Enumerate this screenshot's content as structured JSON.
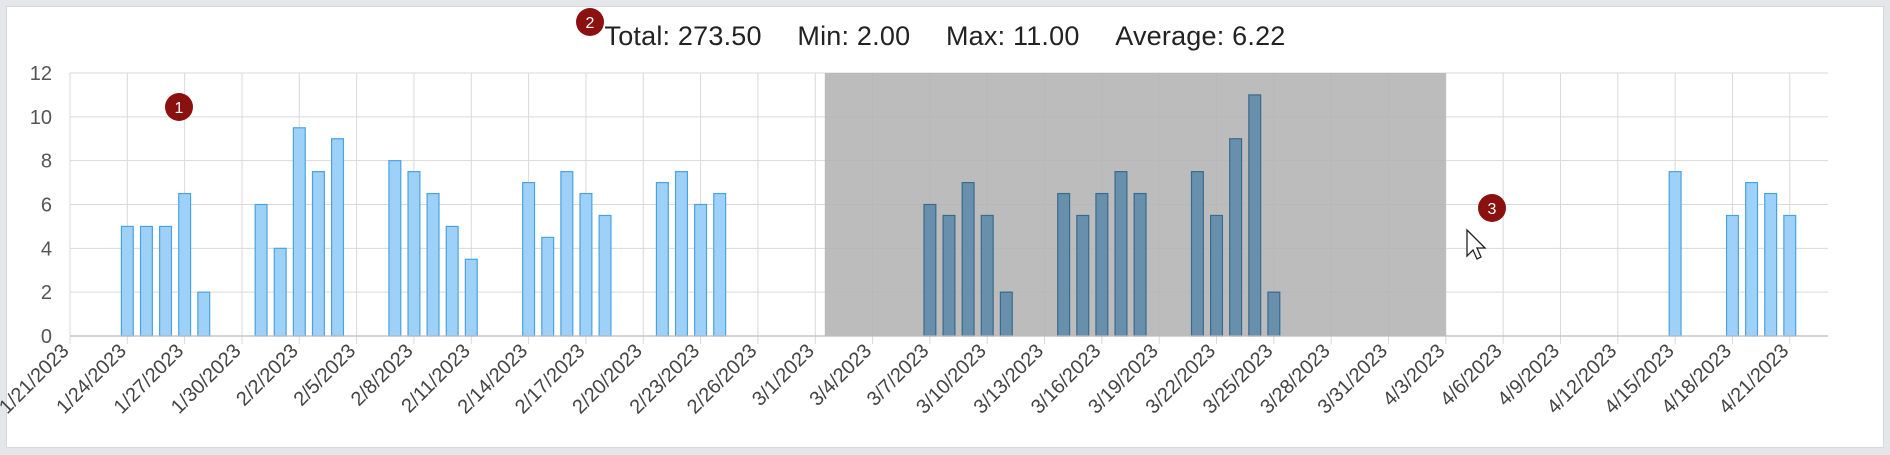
{
  "summary": {
    "total": "Total: 273.50",
    "min": "Min: 2.00",
    "max": "Max: 11.00",
    "average": "Average: 6.22"
  },
  "markers": [
    "1",
    "2",
    "3"
  ],
  "colors": {
    "bar_fill": "#9ed1f7",
    "bar_stroke": "#4aa3e0",
    "bar_fill_selected": "#6890ad",
    "bar_stroke_selected": "#3a6a8c",
    "selection": "#b3b3b3",
    "grid": "#d9d9d9",
    "marker": "#8b1010"
  },
  "chart_data": {
    "type": "bar",
    "x_axis": {
      "tick_labels": [
        "1/21/2023",
        "1/24/2023",
        "1/27/2023",
        "1/30/2023",
        "2/2/2023",
        "2/5/2023",
        "2/8/2023",
        "2/11/2023",
        "2/14/2023",
        "2/17/2023",
        "2/20/2023",
        "2/23/2023",
        "2/26/2023",
        "3/1/2023",
        "3/4/2023",
        "3/7/2023",
        "3/10/2023",
        "3/13/2023",
        "3/16/2023",
        "3/19/2023",
        "3/22/2023",
        "3/25/2023",
        "3/28/2023",
        "3/31/2023",
        "4/3/2023",
        "4/6/2023",
        "4/9/2023",
        "4/12/2023",
        "4/15/2023",
        "4/18/2023",
        "4/21/2023"
      ],
      "range": [
        "1/21/2023",
        "4/23/2023"
      ]
    },
    "y_axis": {
      "ticks": [
        "0",
        "2",
        "4",
        "6",
        "8",
        "10",
        "12"
      ],
      "range": [
        0,
        12
      ]
    },
    "grid": true,
    "selection_range": [
      "3/2/2023",
      "4/3/2023"
    ],
    "points": [
      {
        "x": "1/24/2023",
        "y": 5
      },
      {
        "x": "1/25/2023",
        "y": 5
      },
      {
        "x": "1/26/2023",
        "y": 5
      },
      {
        "x": "1/27/2023",
        "y": 6.5
      },
      {
        "x": "1/28/2023",
        "y": 2
      },
      {
        "x": "1/31/2023",
        "y": 6
      },
      {
        "x": "2/1/2023",
        "y": 4
      },
      {
        "x": "2/2/2023",
        "y": 9.5
      },
      {
        "x": "2/3/2023",
        "y": 7.5
      },
      {
        "x": "2/4/2023",
        "y": 9
      },
      {
        "x": "2/7/2023",
        "y": 8
      },
      {
        "x": "2/8/2023",
        "y": 7.5
      },
      {
        "x": "2/9/2023",
        "y": 6.5
      },
      {
        "x": "2/10/2023",
        "y": 5
      },
      {
        "x": "2/11/2023",
        "y": 3.5
      },
      {
        "x": "2/14/2023",
        "y": 7
      },
      {
        "x": "2/15/2023",
        "y": 4.5
      },
      {
        "x": "2/16/2023",
        "y": 7.5
      },
      {
        "x": "2/17/2023",
        "y": 6.5
      },
      {
        "x": "2/18/2023",
        "y": 5.5
      },
      {
        "x": "2/21/2023",
        "y": 7
      },
      {
        "x": "2/22/2023",
        "y": 7.5
      },
      {
        "x": "2/23/2023",
        "y": 6
      },
      {
        "x": "2/24/2023",
        "y": 6.5
      },
      {
        "x": "3/7/2023",
        "y": 6
      },
      {
        "x": "3/8/2023",
        "y": 5.5
      },
      {
        "x": "3/9/2023",
        "y": 7
      },
      {
        "x": "3/10/2023",
        "y": 5.5
      },
      {
        "x": "3/11/2023",
        "y": 2
      },
      {
        "x": "3/14/2023",
        "y": 6.5
      },
      {
        "x": "3/15/2023",
        "y": 5.5
      },
      {
        "x": "3/16/2023",
        "y": 6.5
      },
      {
        "x": "3/17/2023",
        "y": 7.5
      },
      {
        "x": "3/18/2023",
        "y": 6.5
      },
      {
        "x": "3/21/2023",
        "y": 7.5
      },
      {
        "x": "3/22/2023",
        "y": 5.5
      },
      {
        "x": "3/23/2023",
        "y": 9
      },
      {
        "x": "3/24/2023",
        "y": 11
      },
      {
        "x": "3/25/2023",
        "y": 2
      },
      {
        "x": "4/15/2023",
        "y": 7.5
      },
      {
        "x": "4/18/2023",
        "y": 5.5
      },
      {
        "x": "4/19/2023",
        "y": 7
      },
      {
        "x": "4/20/2023",
        "y": 6.5
      },
      {
        "x": "4/21/2023",
        "y": 5.5
      }
    ]
  }
}
